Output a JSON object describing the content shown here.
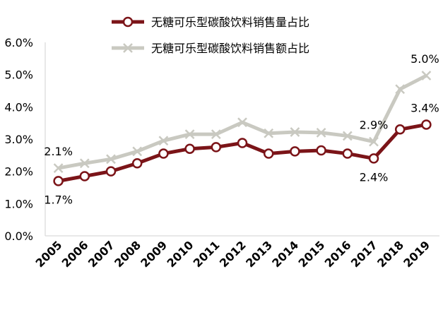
{
  "chart_data": {
    "type": "line",
    "x": [
      "2005",
      "2006",
      "2007",
      "2008",
      "2009",
      "2010",
      "2011",
      "2012",
      "2013",
      "2014",
      "2015",
      "2016",
      "2017",
      "2018",
      "2019"
    ],
    "series": [
      {
        "name": "无糖可乐型碳酸饮料销售量占比",
        "values": [
          1.7,
          1.85,
          2.0,
          2.25,
          2.55,
          2.7,
          2.75,
          2.88,
          2.55,
          2.62,
          2.65,
          2.55,
          2.4,
          3.3,
          3.45
        ],
        "color": "#7b1418",
        "marker": "circle"
      },
      {
        "name": "无糖可乐型碳酸饮料销售额占比",
        "values": [
          2.1,
          2.25,
          2.38,
          2.62,
          2.95,
          3.15,
          3.15,
          3.52,
          3.18,
          3.22,
          3.2,
          3.1,
          2.92,
          4.55,
          4.97
        ],
        "color": "#c9c9c1",
        "marker": "x"
      }
    ],
    "y_ticks": [
      "0.0%",
      "1.0%",
      "2.0%",
      "3.0%",
      "4.0%",
      "5.0%",
      "6.0%"
    ],
    "ylim": [
      0,
      6
    ],
    "grid": false,
    "legend": "top",
    "annotations": [
      {
        "text": "2.1%",
        "series": 1,
        "index": 0,
        "pos": "above"
      },
      {
        "text": "1.7%",
        "series": 0,
        "index": 0,
        "pos": "below"
      },
      {
        "text": "2.9%",
        "series": 1,
        "index": 12,
        "pos": "above"
      },
      {
        "text": "2.4%",
        "series": 0,
        "index": 12,
        "pos": "below"
      },
      {
        "text": "5.0%",
        "series": 1,
        "index": 14,
        "pos": "above"
      },
      {
        "text": "3.4%",
        "series": 0,
        "index": 14,
        "pos": "above"
      }
    ]
  }
}
